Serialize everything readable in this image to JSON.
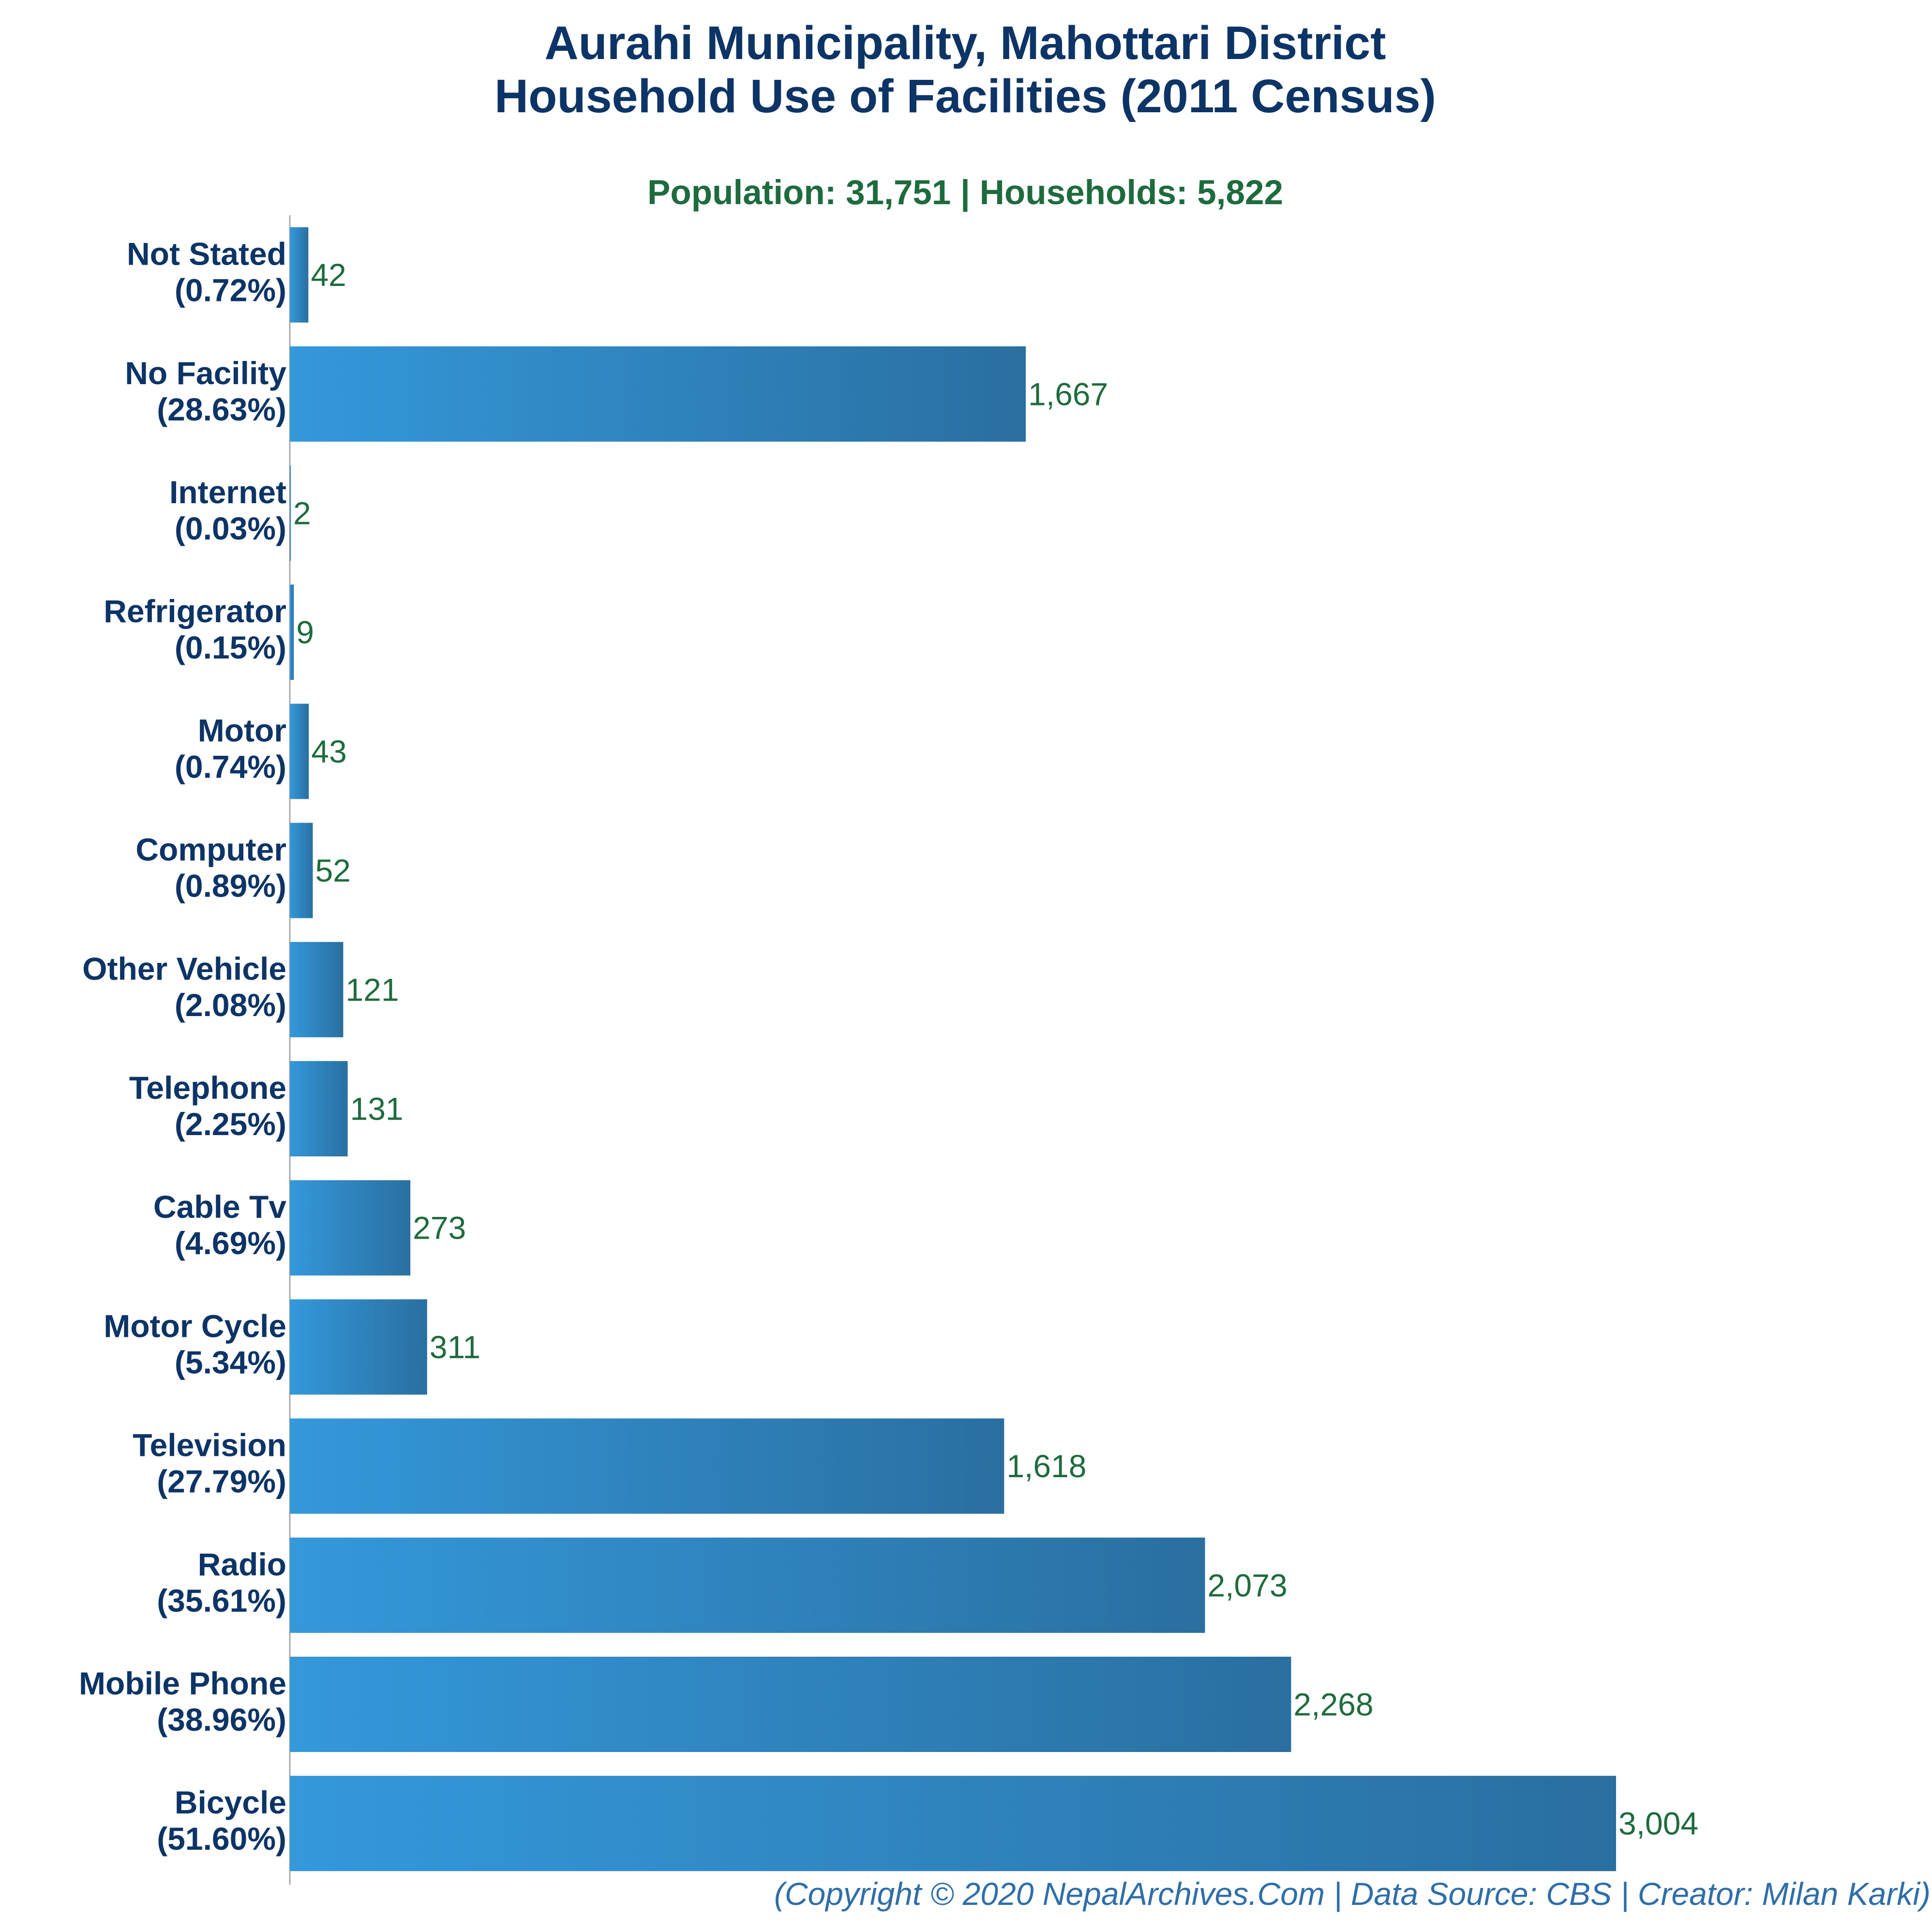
{
  "chart_data": {
    "type": "bar",
    "orientation": "horizontal",
    "title_lines": [
      "Aurahi Municipality, Mahottari District",
      "Household Use of Facilities (2011 Census)"
    ],
    "subtitle": "Population: 31,751 | Households: 5,822",
    "categories": [
      "Not Stated",
      "No Facility",
      "Internet",
      "Refrigerator",
      "Motor",
      "Computer",
      "Other Vehicle",
      "Telephone",
      "Cable Tv",
      "Motor Cycle",
      "Television",
      "Radio",
      "Mobile Phone",
      "Bicycle"
    ],
    "percent_labels": [
      "(0.72%)",
      "(28.63%)",
      "(0.03%)",
      "(0.15%)",
      "(0.74%)",
      "(0.89%)",
      "(2.08%)",
      "(2.25%)",
      "(4.69%)",
      "(5.34%)",
      "(27.79%)",
      "(35.61%)",
      "(38.96%)",
      "(51.60%)"
    ],
    "values": [
      42,
      1667,
      2,
      9,
      43,
      52,
      121,
      131,
      273,
      311,
      1618,
      2073,
      2268,
      3004
    ],
    "value_labels": [
      "42",
      "1,667",
      "2",
      "9",
      "43",
      "52",
      "121",
      "131",
      "273",
      "311",
      "1,618",
      "2,073",
      "2,268",
      "3,004"
    ],
    "xlim": [
      0,
      3004
    ],
    "grid": false,
    "legend": "none",
    "colors": {
      "bar_start": "#3498db",
      "bar_end": "#2a6fa0",
      "title": "#0d3466",
      "subtitle": "#1e6b3d",
      "value_label": "#1e6b3d",
      "axis": "#aaaaaa",
      "footer": "#2f6ea8"
    }
  },
  "footer": "(Copyright © 2020 NepalArchives.Com | Data Source: CBS | Creator: Milan Karki)"
}
